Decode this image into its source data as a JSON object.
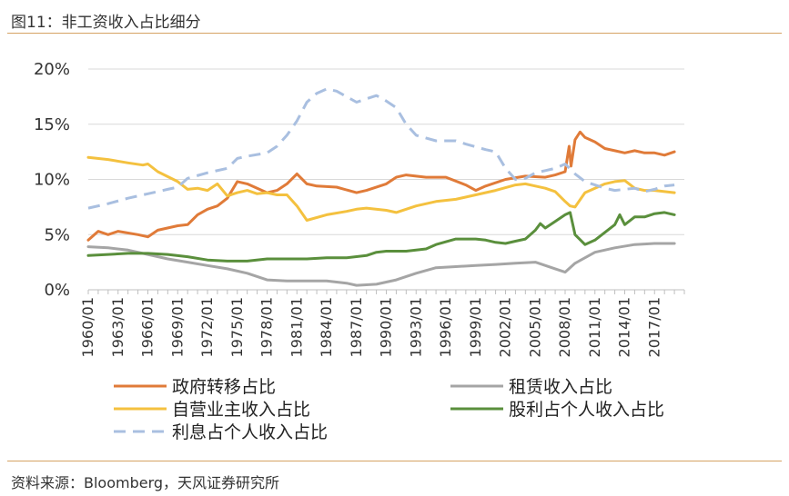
{
  "header": {
    "title": "图11：非工资收入占比细分"
  },
  "footer": {
    "source": "资料来源：Bloomberg，天风证券研究所"
  },
  "chart_data": {
    "type": "line",
    "title": "图11：非工资收入占比细分",
    "xlabel": "",
    "ylabel": "",
    "ylim": [
      0,
      20
    ],
    "yticks": [
      "0%",
      "5%",
      "10%",
      "15%",
      "20%"
    ],
    "yticks_values": [
      0,
      5,
      10,
      15,
      20
    ],
    "xrange": [
      1960,
      2020
    ],
    "xticks": [
      "1960/01",
      "1963/01",
      "1966/01",
      "1969/01",
      "1972/01",
      "1975/01",
      "1978/01",
      "1981/01",
      "1984/01",
      "1987/01",
      "1990/01",
      "1993/01",
      "1996/01",
      "1999/01",
      "2002/01",
      "2005/01",
      "2008/01",
      "2011/01",
      "2014/01",
      "2017/01"
    ],
    "xticks_values": [
      1960,
      1963,
      1966,
      1969,
      1972,
      1975,
      1978,
      1981,
      1984,
      1987,
      1990,
      1993,
      1996,
      1999,
      2002,
      2005,
      2008,
      2011,
      2014,
      2017
    ],
    "legend_position": "bottom",
    "series": [
      {
        "name": "政府转移占比",
        "color": "#e07b39",
        "dash": "solid",
        "x": [
          1960,
          1961,
          1962,
          1963,
          1965,
          1966,
          1967,
          1969,
          1970,
          1971,
          1972,
          1973,
          1974,
          1975,
          1976,
          1977,
          1978,
          1979,
          1980,
          1981,
          1982,
          1983,
          1985,
          1987,
          1988,
          1990,
          1991,
          1992,
          1994,
          1996,
          1998,
          1999,
          2000,
          2002,
          2004,
          2006,
          2007,
          2008,
          2008.4,
          2008.6,
          2009,
          2009.5,
          2010,
          2011,
          2012,
          2013,
          2014,
          2015,
          2016,
          2017,
          2018,
          2019
        ],
        "y": [
          4.5,
          5.3,
          5.0,
          5.3,
          5.0,
          4.8,
          5.4,
          5.8,
          5.9,
          6.8,
          7.3,
          7.6,
          8.3,
          9.8,
          9.6,
          9.2,
          8.8,
          9.0,
          9.6,
          10.5,
          9.6,
          9.4,
          9.3,
          8.8,
          9.0,
          9.6,
          10.2,
          10.4,
          10.2,
          10.2,
          9.5,
          9.0,
          9.4,
          10.0,
          10.3,
          10.2,
          10.4,
          10.7,
          13.0,
          11.2,
          13.6,
          14.3,
          13.8,
          13.4,
          12.8,
          12.6,
          12.4,
          12.6,
          12.4,
          12.4,
          12.2,
          12.5
        ]
      },
      {
        "name": "租赁收入占比",
        "color": "#a5a5a5",
        "dash": "solid",
        "x": [
          1960,
          1962,
          1964,
          1966,
          1968,
          1970,
          1972,
          1974,
          1976,
          1978,
          1980,
          1982,
          1984,
          1986,
          1987,
          1989,
          1991,
          1993,
          1995,
          1997,
          1999,
          2001,
          2003,
          2005,
          2007,
          2008,
          2009,
          2011,
          2013,
          2015,
          2017,
          2019
        ],
        "y": [
          3.9,
          3.8,
          3.6,
          3.2,
          2.8,
          2.5,
          2.2,
          1.9,
          1.5,
          0.9,
          0.8,
          0.8,
          0.8,
          0.6,
          0.4,
          0.5,
          0.9,
          1.5,
          2.0,
          2.1,
          2.2,
          2.3,
          2.4,
          2.5,
          1.9,
          1.6,
          2.4,
          3.4,
          3.8,
          4.1,
          4.2,
          4.2
        ]
      },
      {
        "name": "自营业主收入占比",
        "color": "#f4c13f",
        "dash": "solid",
        "x": [
          1960,
          1962,
          1964,
          1965.5,
          1966,
          1967,
          1969,
          1970,
          1971,
          1972,
          1973,
          1974,
          1975,
          1976,
          1977,
          1978,
          1979,
          1980,
          1981,
          1982,
          1984,
          1986,
          1987,
          1988,
          1990,
          1991,
          1993,
          1995,
          1997,
          1999,
          2001,
          2003,
          2004,
          2005,
          2006,
          2007,
          2008,
          2008.5,
          2009,
          2010,
          2012,
          2013,
          2014,
          2015,
          2016,
          2017,
          2018,
          2019
        ],
        "y": [
          12.0,
          11.8,
          11.5,
          11.3,
          11.4,
          10.7,
          9.8,
          9.1,
          9.2,
          9.0,
          9.6,
          8.5,
          8.8,
          9.0,
          8.7,
          8.8,
          8.6,
          8.6,
          7.6,
          6.3,
          6.8,
          7.1,
          7.3,
          7.4,
          7.2,
          7.0,
          7.6,
          8.0,
          8.2,
          8.6,
          9.0,
          9.5,
          9.6,
          9.4,
          9.2,
          8.9,
          8.0,
          7.6,
          7.5,
          8.8,
          9.6,
          9.8,
          9.9,
          9.2,
          9.0,
          9.0,
          8.9,
          8.8
        ]
      },
      {
        "name": "股利占个人收入占比",
        "color": "#5a8f3c",
        "dash": "solid",
        "x": [
          1960,
          1962,
          1964,
          1966,
          1968,
          1970,
          1972,
          1974,
          1976,
          1978,
          1980,
          1982,
          1984,
          1986,
          1988,
          1989,
          1990,
          1992,
          1994,
          1995,
          1997,
          1999,
          2000,
          2001,
          2002,
          2003,
          2004,
          2005,
          2005.5,
          2006,
          2007,
          2008,
          2008.5,
          2009,
          2010,
          2011,
          2012,
          2013,
          2013.5,
          2014,
          2015,
          2016,
          2017,
          2018,
          2019
        ],
        "y": [
          3.1,
          3.2,
          3.3,
          3.3,
          3.2,
          3.0,
          2.7,
          2.6,
          2.6,
          2.8,
          2.8,
          2.8,
          2.9,
          2.9,
          3.1,
          3.4,
          3.5,
          3.5,
          3.7,
          4.1,
          4.6,
          4.6,
          4.5,
          4.3,
          4.2,
          4.4,
          4.6,
          5.4,
          6.0,
          5.6,
          6.2,
          6.8,
          7.0,
          5.0,
          4.1,
          4.5,
          5.2,
          5.9,
          6.8,
          5.9,
          6.6,
          6.6,
          6.9,
          7.0,
          6.8
        ]
      },
      {
        "name": "利息占个人收入占比",
        "color": "#a9bfe0",
        "dash": "dashed",
        "x": [
          1960,
          1962,
          1964,
          1966,
          1968,
          1969,
          1970,
          1972,
          1974,
          1975,
          1976,
          1978,
          1979,
          1980,
          1981,
          1982,
          1983,
          1984,
          1985,
          1986,
          1987,
          1988,
          1989,
          1990,
          1991,
          1992,
          1993,
          1995,
          1997,
          1998,
          2000,
          2001,
          2002,
          2003,
          2004,
          2005,
          2006,
          2007,
          2008,
          2009,
          2010,
          2011,
          2012,
          2013,
          2014,
          2015,
          2016,
          2017,
          2018,
          2019
        ],
        "y": [
          7.4,
          7.8,
          8.3,
          8.7,
          9.1,
          9.3,
          10.1,
          10.6,
          11.0,
          11.9,
          12.1,
          12.4,
          13.0,
          14.0,
          15.3,
          17.0,
          17.8,
          18.2,
          18.0,
          17.5,
          17.0,
          17.3,
          17.6,
          17.1,
          16.5,
          15.0,
          14.0,
          13.5,
          13.5,
          13.2,
          12.7,
          12.5,
          11.0,
          10.0,
          10.1,
          10.6,
          10.8,
          11.0,
          11.4,
          10.5,
          9.8,
          9.5,
          9.2,
          9.0,
          9.1,
          9.2,
          8.9,
          9.1,
          9.4,
          9.5
        ]
      }
    ]
  }
}
